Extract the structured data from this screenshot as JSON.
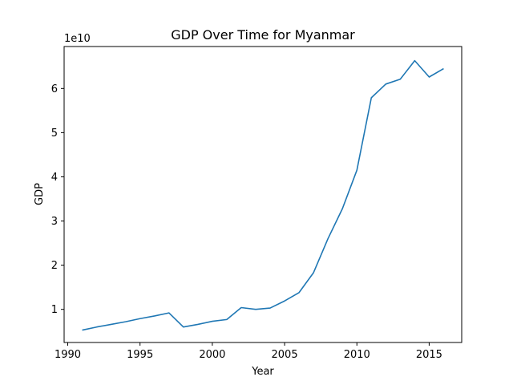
{
  "chart_data": {
    "type": "line",
    "title": "GDP Over Time for Myanmar",
    "xlabel": "Year",
    "ylabel": "GDP",
    "y_offset_label": "1e10",
    "xlim": [
      1989.75,
      2017.25
    ],
    "ylim": [
      0.25,
      6.95
    ],
    "x_ticks": [
      1990,
      1995,
      2000,
      2005,
      2010,
      2015
    ],
    "y_ticks": [
      1,
      2,
      3,
      4,
      5,
      6
    ],
    "grid": false,
    "legend": "none",
    "series": [
      {
        "name": "GDP",
        "color": "#1f77b4",
        "x": [
          1991,
          1992,
          1993,
          1994,
          1995,
          1996,
          1997,
          1998,
          1999,
          2000,
          2001,
          2002,
          2003,
          2004,
          2005,
          2006,
          2007,
          2008,
          2009,
          2010,
          2011,
          2012,
          2013,
          2014,
          2015,
          2016
        ],
        "values": [
          0.53,
          0.6,
          0.66,
          0.72,
          0.79,
          0.85,
          0.92,
          0.6,
          0.66,
          0.73,
          0.77,
          1.04,
          1.0,
          1.03,
          1.19,
          1.38,
          1.83,
          2.6,
          3.28,
          4.15,
          5.79,
          6.1,
          6.21,
          6.63,
          6.26,
          6.45
        ]
      }
    ]
  }
}
